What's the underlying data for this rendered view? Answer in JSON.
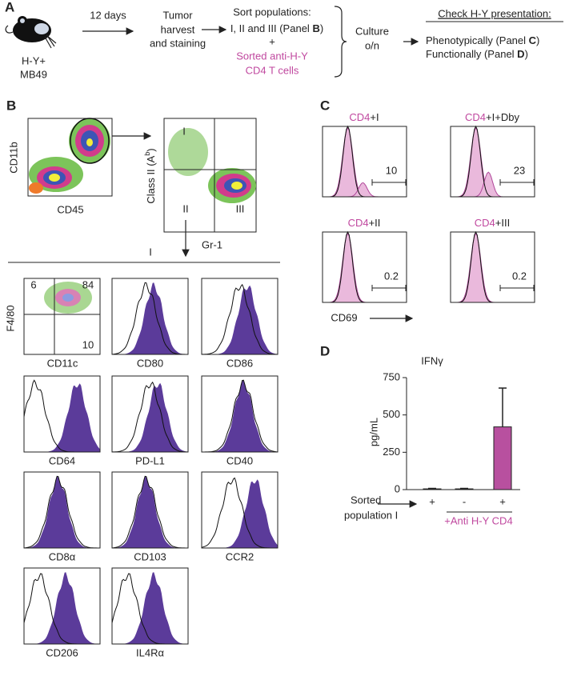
{
  "panel_a": {
    "label": "A",
    "host": [
      "H-Y+",
      "MB49"
    ],
    "step1": "12 days",
    "step2": [
      "Tumor",
      "harvest",
      "and staining"
    ],
    "sort": {
      "title": "Sort populations:",
      "line": [
        "I, II and III (Panel ",
        "B",
        ")"
      ],
      "plus": "+",
      "cells": [
        "Sorted anti-H-Y",
        "CD4 T cells"
      ]
    },
    "culture": [
      "Culture",
      "o/n"
    ],
    "check": {
      "title": "Check H-Y presentation:",
      "items": [
        [
          "Phenotypically (Panel ",
          "C",
          ")"
        ],
        [
          "Functionally (Panel ",
          "D",
          ")"
        ]
      ]
    }
  },
  "panel_b": {
    "label": "B",
    "gate_plot": {
      "y_label": "CD11b",
      "x_label": "CD45"
    },
    "sort_plot": {
      "y_label": [
        "Class II (A",
        "b",
        ")"
      ],
      "x_label": "Gr-1",
      "gates": [
        "I",
        "II",
        "III"
      ]
    },
    "population": "I",
    "scatter": {
      "y_label": "F4/80",
      "x_label": "CD11c",
      "quadrants": [
        "6",
        "84",
        "10"
      ]
    },
    "markers": [
      "CD80",
      "CD86",
      "CD64",
      "PD-L1",
      "CD40",
      "CD8α",
      "CD103",
      "CCR2",
      "CD206",
      "IL4Rα"
    ]
  },
  "panel_c": {
    "label": "C",
    "plots": [
      {
        "title": [
          "CD4",
          "+I"
        ],
        "gate": "10"
      },
      {
        "title": [
          "CD4",
          "+I+Dby"
        ],
        "gate": "23"
      },
      {
        "title": [
          "CD4",
          "+II"
        ],
        "gate": "0.2"
      },
      {
        "title": [
          "CD4",
          "+III"
        ],
        "gate": "0.2"
      }
    ],
    "x_label": "CD69"
  },
  "chart_data": {
    "type": "bar",
    "panel_label": "D",
    "title": "IFNγ",
    "y_label": "pg/mL",
    "categories": [
      "+",
      "-",
      "+"
    ],
    "values": [
      5,
      5,
      420
    ],
    "errors": [
      3,
      3,
      260
    ],
    "color": "#b8509f",
    "ylim": [
      0,
      750
    ],
    "yticks": [
      0,
      250,
      500,
      750
    ],
    "row_label": [
      "Sorted",
      "population I"
    ],
    "group_label": "+Anti H-Y CD4",
    "group_color": "#c0489f"
  }
}
